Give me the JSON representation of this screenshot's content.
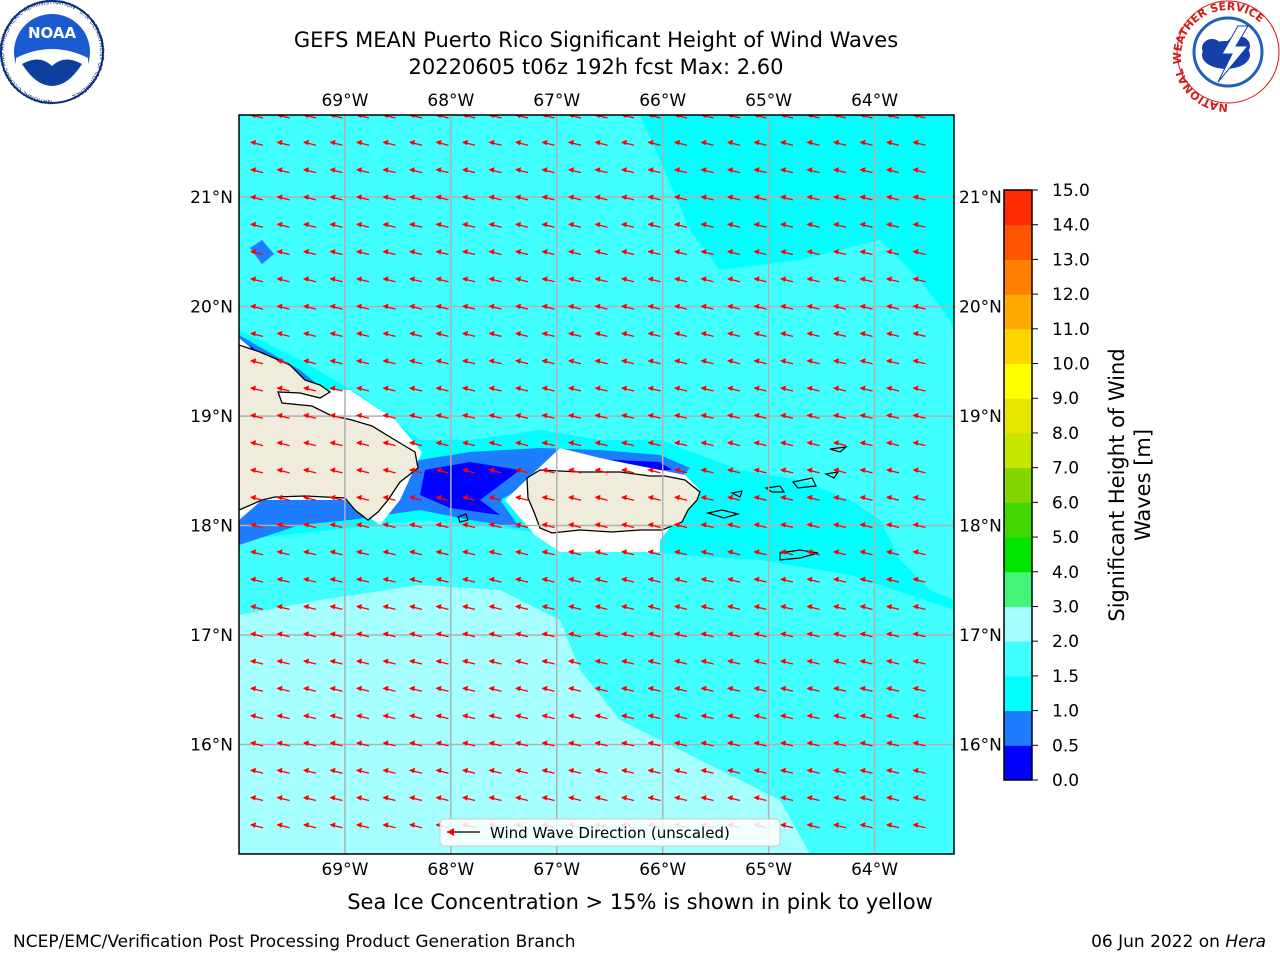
{
  "header": {
    "title_line1": "GEFS MEAN Puerto Rico Significant Height of Wind Waves",
    "title_line2": "20220605 t06z 192h fcst   Max: 2.60"
  },
  "logos": {
    "noaa_text": "NOAA",
    "noaa_ring_text": "NATIONAL OCEANIC AND ATMOSPHERIC ADMINISTRATION · U.S. DEPARTMENT OF COMMERCE",
    "nws_ring_text": "NATIONAL WEATHER SERVICE"
  },
  "map": {
    "lon_labels": [
      "69°W",
      "68°W",
      "67°W",
      "66°W",
      "65°W",
      "64°W"
    ],
    "lat_labels": [
      "21°N",
      "20°N",
      "19°N",
      "18°N",
      "17°N",
      "16°N"
    ],
    "legend_label": "Wind Wave Direction (unscaled)",
    "arrow_color": "#ff0000",
    "land_color": "#efecdc",
    "grid_color": "#b0b0b0"
  },
  "colorbar": {
    "label_line1": "Significant Height of Wind",
    "label_line2": "Waves [m]",
    "ticks": [
      "0.0",
      "0.5",
      "1.0",
      "1.5",
      "2.0",
      "3.0",
      "4.0",
      "5.0",
      "6.0",
      "7.0",
      "8.0",
      "9.0",
      "10.0",
      "11.0",
      "12.0",
      "13.0",
      "14.0",
      "15.0"
    ],
    "colors": [
      "#0000ff",
      "#1e7cff",
      "#00ffff",
      "#42ffff",
      "#a5ffff",
      "#42f57a",
      "#00e500",
      "#42d600",
      "#84d600",
      "#c5e600",
      "#e6e600",
      "#ffff00",
      "#ffd500",
      "#ffaa00",
      "#ff7f00",
      "#ff5500",
      "#ff2a00",
      "#ff0000"
    ]
  },
  "chart_data": {
    "type": "heatmap",
    "variable": "Significant Height of Wind Waves",
    "units": "m",
    "max_value": 2.6,
    "xlim": [
      -70,
      -63.25
    ],
    "ylim": [
      15,
      21.75
    ],
    "colorbar_range": [
      0.0,
      15.0
    ]
  },
  "footer": {
    "ice_note": "Sea Ice Concentration > 15% is shown in pink to yellow",
    "left": "NCEP/EMC/Verification Post Processing Product Generation Branch",
    "right_prefix": "06 Jun 2022 on ",
    "right_host": "Hera"
  }
}
